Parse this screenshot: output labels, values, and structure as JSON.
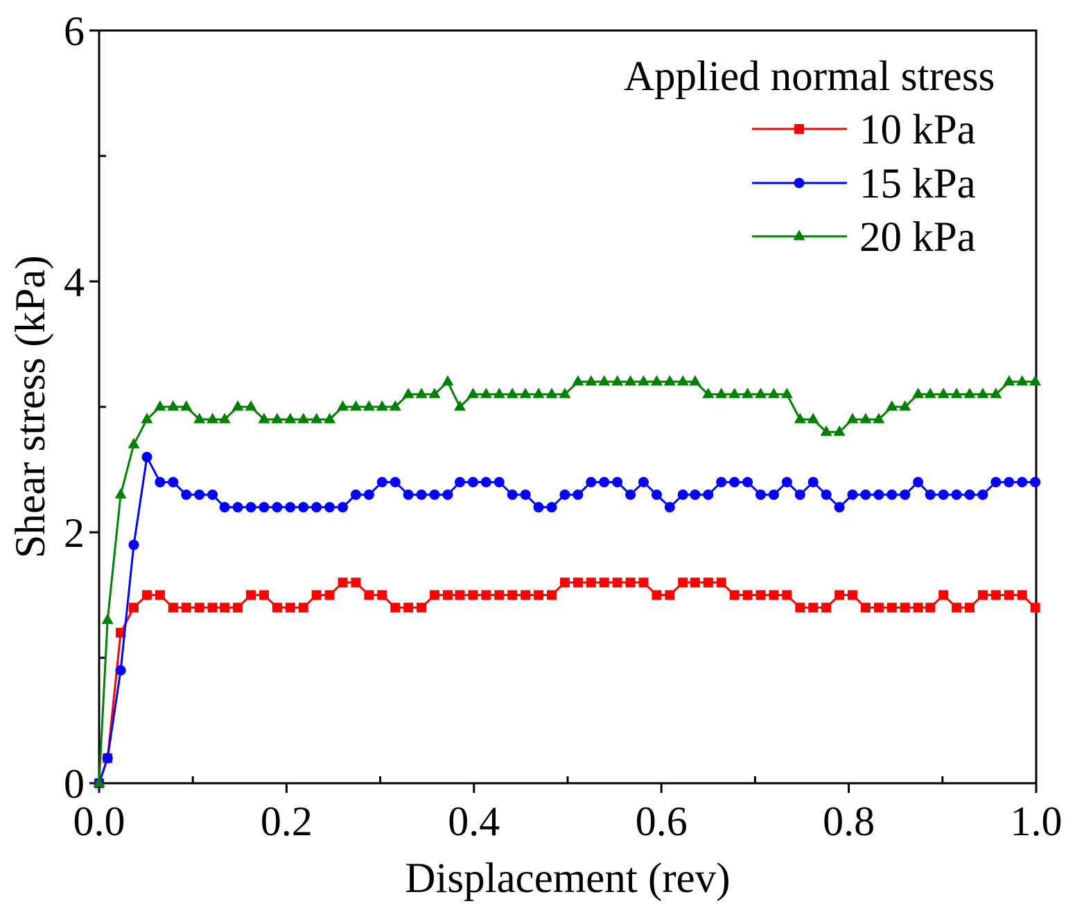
{
  "chart_data": {
    "type": "line",
    "title": "",
    "xlabel": "Displacement (rev)",
    "ylabel": "Shear stress (kPa)",
    "xlim": [
      0,
      1.0
    ],
    "ylim": [
      0,
      6
    ],
    "xticks": [
      0.0,
      0.2,
      0.4,
      0.6,
      0.8,
      1.0
    ],
    "xtick_labels": [
      "0.0",
      "0.2",
      "0.4",
      "0.6",
      "0.8",
      "1.0"
    ],
    "xminor_ticks": [
      0.1,
      0.3,
      0.5,
      0.7,
      0.9
    ],
    "yticks": [
      0,
      2,
      4,
      6
    ],
    "ytick_labels": [
      "0",
      "2",
      "4",
      "6"
    ],
    "yminor_ticks": [
      1,
      3,
      5
    ],
    "grid": false,
    "legend": {
      "title": "Applied normal stress",
      "position": "top-right"
    },
    "x": [
      0,
      0.009,
      0.023,
      0.037,
      0.051,
      0.065,
      0.079,
      0.093,
      0.107,
      0.121,
      0.134,
      0.148,
      0.162,
      0.176,
      0.19,
      0.204,
      0.218,
      0.232,
      0.246,
      0.26,
      0.274,
      0.288,
      0.302,
      0.316,
      0.33,
      0.344,
      0.358,
      0.372,
      0.385,
      0.399,
      0.413,
      0.427,
      0.441,
      0.455,
      0.469,
      0.483,
      0.497,
      0.511,
      0.525,
      0.539,
      0.553,
      0.567,
      0.581,
      0.595,
      0.609,
      0.623,
      0.636,
      0.65,
      0.664,
      0.678,
      0.692,
      0.706,
      0.72,
      0.734,
      0.748,
      0.762,
      0.776,
      0.79,
      0.804,
      0.818,
      0.832,
      0.846,
      0.86,
      0.874,
      0.887,
      0.901,
      0.915,
      0.929,
      0.943,
      0.957,
      0.971,
      0.985,
      0.999
    ],
    "series": [
      {
        "name": "10 kPa",
        "color": "#ff0000",
        "marker": "square",
        "values": [
          0,
          0.2,
          1.2,
          1.4,
          1.5,
          1.5,
          1.4,
          1.4,
          1.4,
          1.4,
          1.4,
          1.4,
          1.5,
          1.5,
          1.4,
          1.4,
          1.4,
          1.5,
          1.5,
          1.6,
          1.6,
          1.5,
          1.5,
          1.4,
          1.4,
          1.4,
          1.5,
          1.5,
          1.5,
          1.5,
          1.5,
          1.5,
          1.5,
          1.5,
          1.5,
          1.5,
          1.6,
          1.6,
          1.6,
          1.6,
          1.6,
          1.6,
          1.6,
          1.5,
          1.5,
          1.6,
          1.6,
          1.6,
          1.6,
          1.5,
          1.5,
          1.5,
          1.5,
          1.5,
          1.4,
          1.4,
          1.4,
          1.5,
          1.5,
          1.4,
          1.4,
          1.4,
          1.4,
          1.4,
          1.4,
          1.5,
          1.4,
          1.4,
          1.5,
          1.5,
          1.5,
          1.5,
          1.4
        ]
      },
      {
        "name": "15 kPa",
        "color": "#0000ff",
        "marker": "circle",
        "values": [
          0,
          0.2,
          0.9,
          1.9,
          2.6,
          2.4,
          2.4,
          2.3,
          2.3,
          2.3,
          2.2,
          2.2,
          2.2,
          2.2,
          2.2,
          2.2,
          2.2,
          2.2,
          2.2,
          2.2,
          2.3,
          2.3,
          2.4,
          2.4,
          2.3,
          2.3,
          2.3,
          2.3,
          2.4,
          2.4,
          2.4,
          2.4,
          2.3,
          2.3,
          2.2,
          2.2,
          2.3,
          2.3,
          2.4,
          2.4,
          2.4,
          2.3,
          2.4,
          2.3,
          2.2,
          2.3,
          2.3,
          2.3,
          2.4,
          2.4,
          2.4,
          2.3,
          2.3,
          2.4,
          2.3,
          2.4,
          2.3,
          2.2,
          2.3,
          2.3,
          2.3,
          2.3,
          2.3,
          2.4,
          2.3,
          2.3,
          2.3,
          2.3,
          2.3,
          2.4,
          2.4,
          2.4,
          2.4
        ]
      },
      {
        "name": "20 kPa",
        "color": "#008000",
        "marker": "triangle",
        "values": [
          0,
          1.3,
          2.3,
          2.7,
          2.9,
          3.0,
          3.0,
          3.0,
          2.9,
          2.9,
          2.9,
          3.0,
          3.0,
          2.9,
          2.9,
          2.9,
          2.9,
          2.9,
          2.9,
          3.0,
          3.0,
          3.0,
          3.0,
          3.0,
          3.1,
          3.1,
          3.1,
          3.2,
          3.0,
          3.1,
          3.1,
          3.1,
          3.1,
          3.1,
          3.1,
          3.1,
          3.1,
          3.2,
          3.2,
          3.2,
          3.2,
          3.2,
          3.2,
          3.2,
          3.2,
          3.2,
          3.2,
          3.1,
          3.1,
          3.1,
          3.1,
          3.1,
          3.1,
          3.1,
          2.9,
          2.9,
          2.8,
          2.8,
          2.9,
          2.9,
          2.9,
          3.0,
          3.0,
          3.1,
          3.1,
          3.1,
          3.1,
          3.1,
          3.1,
          3.1,
          3.2,
          3.2,
          3.2
        ]
      }
    ]
  }
}
